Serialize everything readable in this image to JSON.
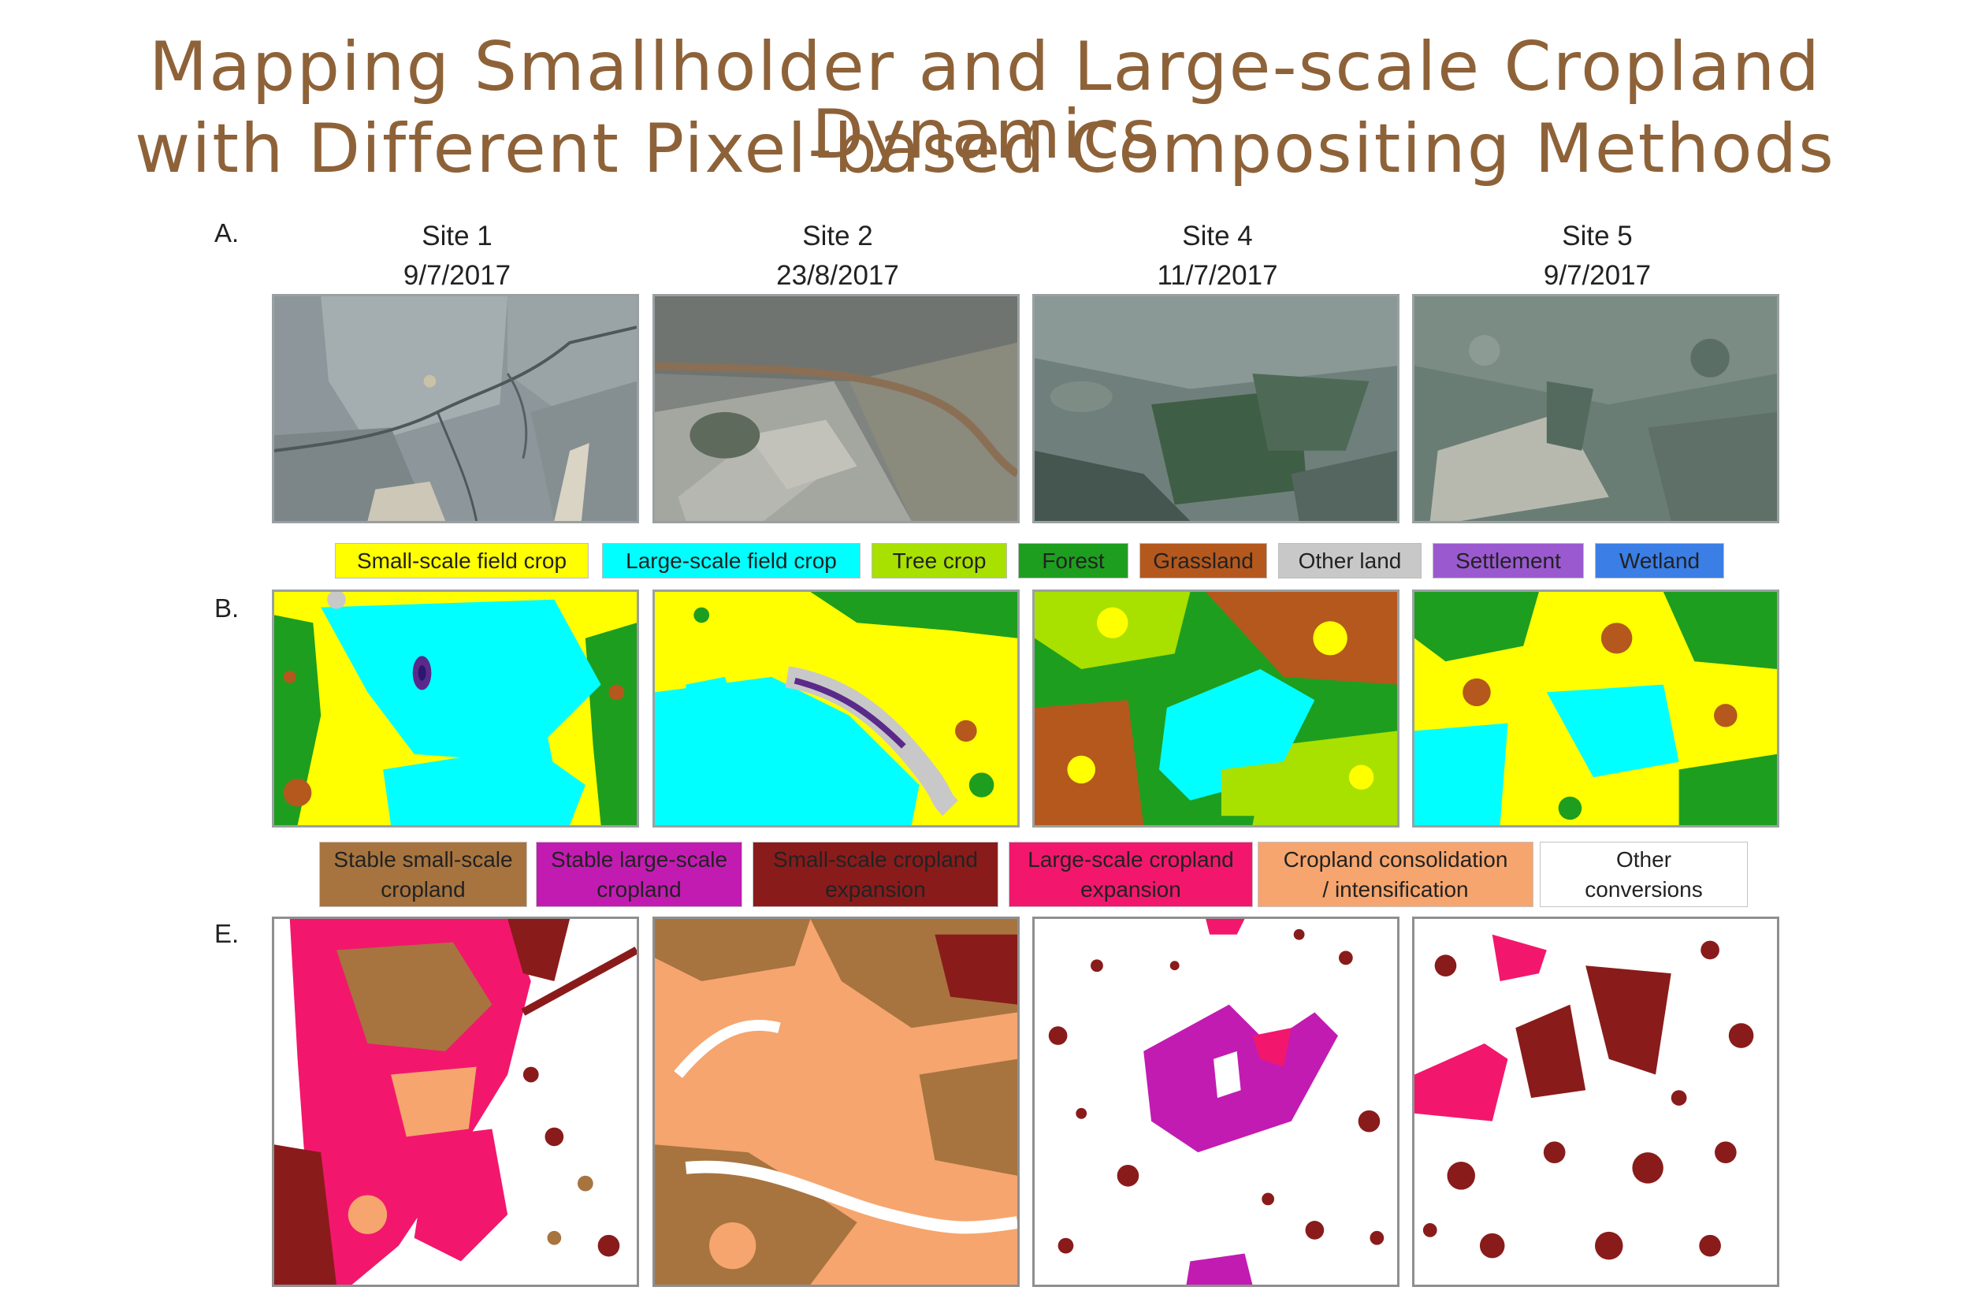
{
  "title": {
    "line1": "Mapping Smallholder and Large-scale Cropland Dynamics",
    "line2": "with Different Pixel-based Compositing Methods"
  },
  "panels": {
    "a": "A.",
    "b": "B.",
    "e": "E."
  },
  "sites": [
    {
      "name": "Site 1",
      "date": "9/7/2017"
    },
    {
      "name": "Site 2",
      "date": "23/8/2017"
    },
    {
      "name": "Site 4",
      "date": "11/7/2017"
    },
    {
      "name": "Site 5",
      "date": "9/7/2017"
    }
  ],
  "legend_landcover": [
    {
      "label": "Small-scale field crop",
      "color": "#ffff00"
    },
    {
      "label": "Large-scale field crop",
      "color": "#00ffff"
    },
    {
      "label": "Tree crop",
      "color": "#a8e000"
    },
    {
      "label": "Forest",
      "color": "#1e9e1e"
    },
    {
      "label": "Grassland",
      "color": "#b5581d"
    },
    {
      "label": "Other land",
      "color": "#c8c8c8"
    },
    {
      "label": "Settlement",
      "color": "#9b59d0"
    },
    {
      "label": "Wetland",
      "color": "#3a7ee6"
    }
  ],
  "legend_change": [
    {
      "line1": "Stable small-scale",
      "line2": "cropland",
      "color": "#a7743f"
    },
    {
      "line1": "Stable large-scale",
      "line2": "cropland",
      "color": "#c21bb2"
    },
    {
      "line1": "Small-scale cropland",
      "line2": "expansion",
      "color": "#8a1b1b"
    },
    {
      "line1": "Large-scale cropland",
      "line2": "expansion",
      "color": "#f2176c"
    },
    {
      "line1": "Cropland consolidation",
      "line2": "/ intensification",
      "color": "#f6a56e"
    },
    {
      "line1": "Other",
      "line2": "conversions",
      "color": "#ffffff"
    }
  ]
}
